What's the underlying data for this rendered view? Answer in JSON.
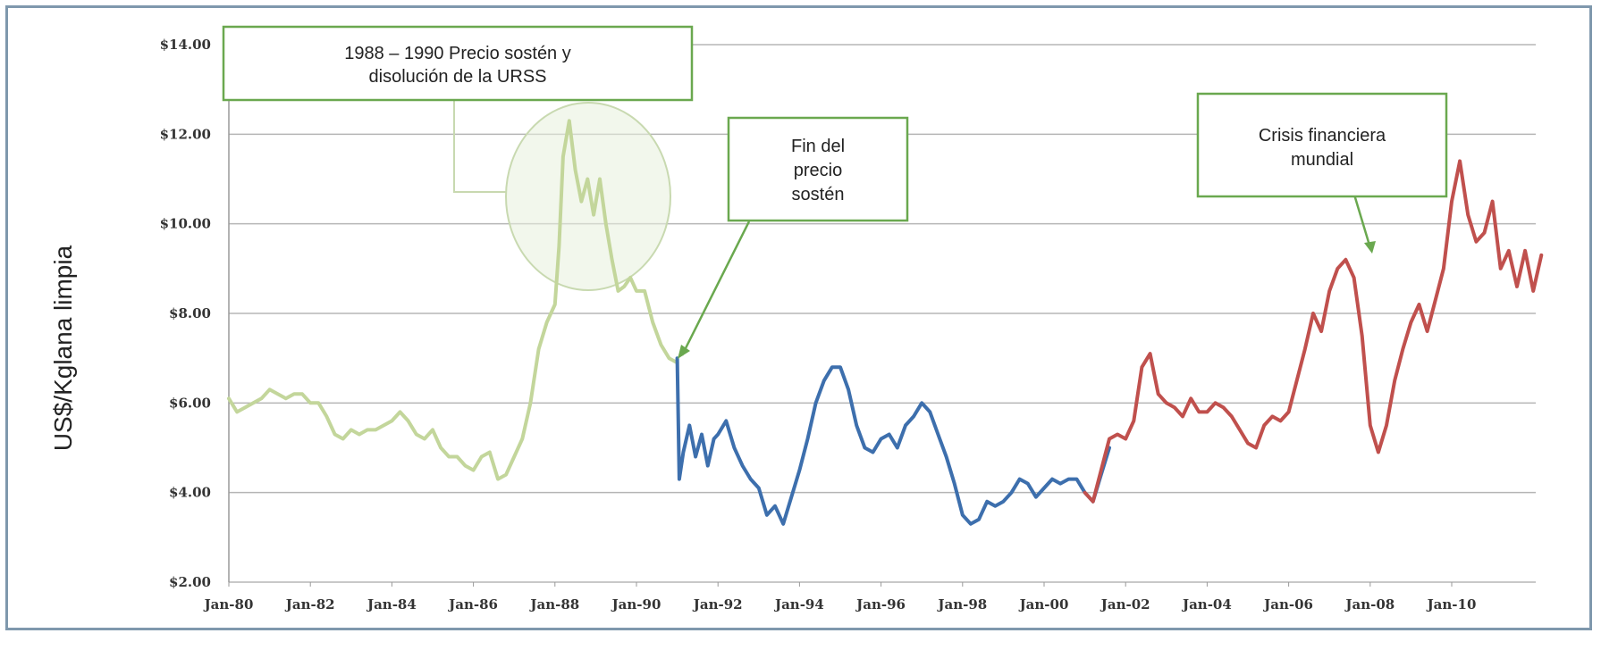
{
  "chart_data": {
    "type": "line",
    "title": "",
    "xlabel": "",
    "ylabel": "US$/Kglana limpia",
    "ylim": [
      2,
      14
    ],
    "xlim": [
      1980.0,
      2012.2
    ],
    "grid": true,
    "y_ticks": [
      "$2.00",
      "$4.00",
      "$6.00",
      "$8.00",
      "$10.00",
      "$12.00",
      "$14.00"
    ],
    "y_tick_values": [
      2,
      4,
      6,
      8,
      10,
      12,
      14
    ],
    "x_ticks": [
      "Jan-80",
      "Jan-82",
      "Jan-84",
      "Jan-86",
      "Jan-88",
      "Jan-90",
      "Jan-92",
      "Jan-94",
      "Jan-96",
      "Jan-98",
      "Jan-00",
      "Jan-02",
      "Jan-04",
      "Jan-06",
      "Jan-08",
      "Jan-10"
    ],
    "x_tick_values": [
      1980,
      1982,
      1984,
      1986,
      1988,
      1990,
      1992,
      1994,
      1996,
      1998,
      2000,
      2002,
      2004,
      2006,
      2008,
      2010
    ],
    "series": [
      {
        "color": "#c3d69b",
        "x": [
          1980.0,
          1980.2,
          1980.4,
          1980.6,
          1980.8,
          1981.0,
          1981.2,
          1981.4,
          1981.6,
          1981.8,
          1982.0,
          1982.2,
          1982.4,
          1982.6,
          1982.8,
          1983.0,
          1983.2,
          1983.4,
          1983.6,
          1983.8,
          1984.0,
          1984.2,
          1984.4,
          1984.6,
          1984.8,
          1985.0,
          1985.2,
          1985.4,
          1985.6,
          1985.8,
          1986.0,
          1986.2,
          1986.4,
          1986.6,
          1986.8,
          1987.0,
          1987.2,
          1987.4,
          1987.6,
          1987.8,
          1988.0,
          1988.1,
          1988.2,
          1988.35,
          1988.5,
          1988.65,
          1988.8,
          1988.95,
          1989.1,
          1989.25,
          1989.4,
          1989.55,
          1989.7,
          1989.85,
          1990.0,
          1990.2,
          1990.4,
          1990.6,
          1990.8,
          1991.0
        ],
        "y": [
          6.1,
          5.8,
          5.9,
          6.0,
          6.1,
          6.3,
          6.2,
          6.1,
          6.2,
          6.2,
          6.0,
          6.0,
          5.7,
          5.3,
          5.2,
          5.4,
          5.3,
          5.4,
          5.4,
          5.5,
          5.6,
          5.8,
          5.6,
          5.3,
          5.2,
          5.4,
          5.0,
          4.8,
          4.8,
          4.6,
          4.5,
          4.8,
          4.9,
          4.3,
          4.4,
          4.8,
          5.2,
          6.0,
          7.2,
          7.8,
          8.2,
          9.5,
          11.5,
          12.3,
          11.2,
          10.5,
          11.0,
          10.2,
          11.0,
          10.0,
          9.2,
          8.5,
          8.6,
          8.8,
          8.5,
          8.5,
          7.8,
          7.3,
          7.0,
          6.9
        ]
      },
      {
        "color": "#3d6fad",
        "x": [
          1991.0,
          1991.05,
          1991.15,
          1991.3,
          1991.45,
          1991.6,
          1991.75,
          1991.9,
          1992.0,
          1992.2,
          1992.4,
          1992.6,
          1992.8,
          1993.0,
          1993.2,
          1993.4,
          1993.6,
          1993.8,
          1994.0,
          1994.2,
          1994.4,
          1994.6,
          1994.8,
          1995.0,
          1995.2,
          1995.4,
          1995.6,
          1995.8,
          1996.0,
          1996.2,
          1996.4,
          1996.6,
          1996.8,
          1997.0,
          1997.2,
          1997.4,
          1997.6,
          1997.8,
          1998.0,
          1998.2,
          1998.4,
          1998.6,
          1998.8,
          1999.0,
          1999.2,
          1999.4,
          1999.6,
          1999.8,
          2000.0,
          2000.2,
          2000.4,
          2000.6,
          2000.8,
          2001.0,
          2001.2,
          2001.4,
          2001.6
        ],
        "y": [
          7.0,
          4.3,
          4.9,
          5.5,
          4.8,
          5.3,
          4.6,
          5.2,
          5.3,
          5.6,
          5.0,
          4.6,
          4.3,
          4.1,
          3.5,
          3.7,
          3.3,
          3.9,
          4.5,
          5.2,
          6.0,
          6.5,
          6.8,
          6.8,
          6.3,
          5.5,
          5.0,
          4.9,
          5.2,
          5.3,
          5.0,
          5.5,
          5.7,
          6.0,
          5.8,
          5.3,
          4.8,
          4.2,
          3.5,
          3.3,
          3.4,
          3.8,
          3.7,
          3.8,
          4.0,
          4.3,
          4.2,
          3.9,
          4.1,
          4.3,
          4.2,
          4.3,
          4.3,
          4.0,
          3.8,
          4.4,
          5.0
        ]
      },
      {
        "color": "#c0504d",
        "x": [
          2001.0,
          2001.2,
          2001.4,
          2001.6,
          2001.8,
          2002.0,
          2002.2,
          2002.4,
          2002.6,
          2002.8,
          2003.0,
          2003.2,
          2003.4,
          2003.6,
          2003.8,
          2004.0,
          2004.2,
          2004.4,
          2004.6,
          2004.8,
          2005.0,
          2005.2,
          2005.4,
          2005.6,
          2005.8,
          2006.0,
          2006.2,
          2006.4,
          2006.6,
          2006.8,
          2007.0,
          2007.2,
          2007.4,
          2007.6,
          2007.8,
          2008.0,
          2008.2,
          2008.4,
          2008.6,
          2008.8,
          2009.0,
          2009.2,
          2009.4,
          2009.6,
          2009.8,
          2010.0,
          2010.2,
          2010.4,
          2010.6,
          2010.8,
          2011.0,
          2011.2,
          2011.4,
          2011.6,
          2011.8,
          2012.0,
          2012.2
        ],
        "y": [
          4.0,
          3.8,
          4.5,
          5.2,
          5.3,
          5.2,
          5.6,
          6.8,
          7.1,
          6.2,
          6.0,
          5.9,
          5.7,
          6.1,
          5.8,
          5.8,
          6.0,
          5.9,
          5.7,
          5.4,
          5.1,
          5.0,
          5.5,
          5.7,
          5.6,
          5.8,
          6.5,
          7.2,
          8.0,
          7.6,
          8.5,
          9.0,
          9.2,
          8.8,
          7.5,
          5.5,
          4.9,
          5.5,
          6.5,
          7.2,
          7.8,
          8.2,
          7.6,
          8.3,
          9.0,
          10.5,
          11.4,
          10.2,
          9.6,
          9.8,
          10.5,
          9.0,
          9.4,
          8.6,
          9.4,
          8.5,
          9.3
        ]
      }
    ],
    "annotations": [
      {
        "lines": [
          "1988 – 1990 Precio sostén y",
          "disolución de la URSS"
        ]
      },
      {
        "lines": [
          "Fin del",
          "precio",
          "sostén"
        ]
      },
      {
        "lines": [
          "Crisis financiera",
          "mundial"
        ]
      }
    ]
  }
}
